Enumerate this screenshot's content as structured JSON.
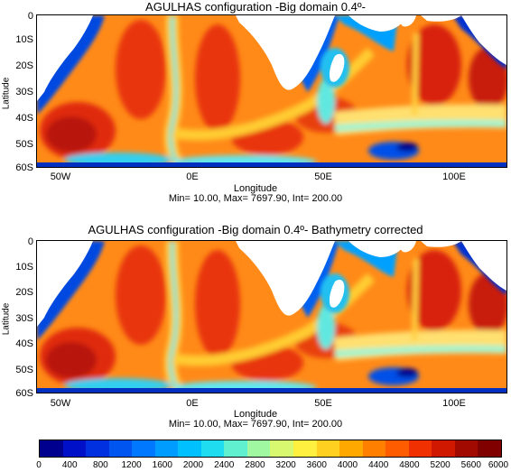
{
  "panels": [
    {
      "title": "AGULHAS configuration -Big  domain 0.4º-",
      "xlabel": "Longitude",
      "ylabel": "Latitude",
      "stats": "Min= 10.00, Max= 7697.90, Int= 200.00"
    },
    {
      "title": "AGULHAS configuration -Big  domain 0.4º- Bathymetry corrected",
      "xlabel": "Longitude",
      "ylabel": "Latitude",
      "stats": "Min= 10.00, Max= 7697.90, Int= 200.00"
    }
  ],
  "latitude_ticks": [
    "0",
    "10S",
    "20S",
    "30S",
    "40S",
    "50S",
    "60S"
  ],
  "longitude_ticks": [
    "50W",
    "0E",
    "50E",
    "100E"
  ],
  "colorbar": {
    "ticks": [
      "0",
      "400",
      "800",
      "1200",
      "1600",
      "2000",
      "2400",
      "2800",
      "3200",
      "3600",
      "4000",
      "4400",
      "4800",
      "5200",
      "5600",
      "6000"
    ],
    "colors": [
      "#00008f",
      "#0010c8",
      "#0030e0",
      "#0055f0",
      "#0078ff",
      "#009cff",
      "#00c0ff",
      "#20dcf0",
      "#60f0d0",
      "#a0f8a0",
      "#d8f870",
      "#fff040",
      "#ffd020",
      "#ffa800",
      "#ff8000",
      "#ff5c00",
      "#f03000",
      "#d01800",
      "#a00a00",
      "#800000"
    ]
  },
  "map_colors": {
    "land": "#ffffff",
    "deep": "#e8340c",
    "very_deep": "#b01408",
    "mid": "#ff9a1a",
    "ridge": "#ffd23a",
    "slope": "#30e0e0",
    "shelf": "#0038d8"
  }
}
